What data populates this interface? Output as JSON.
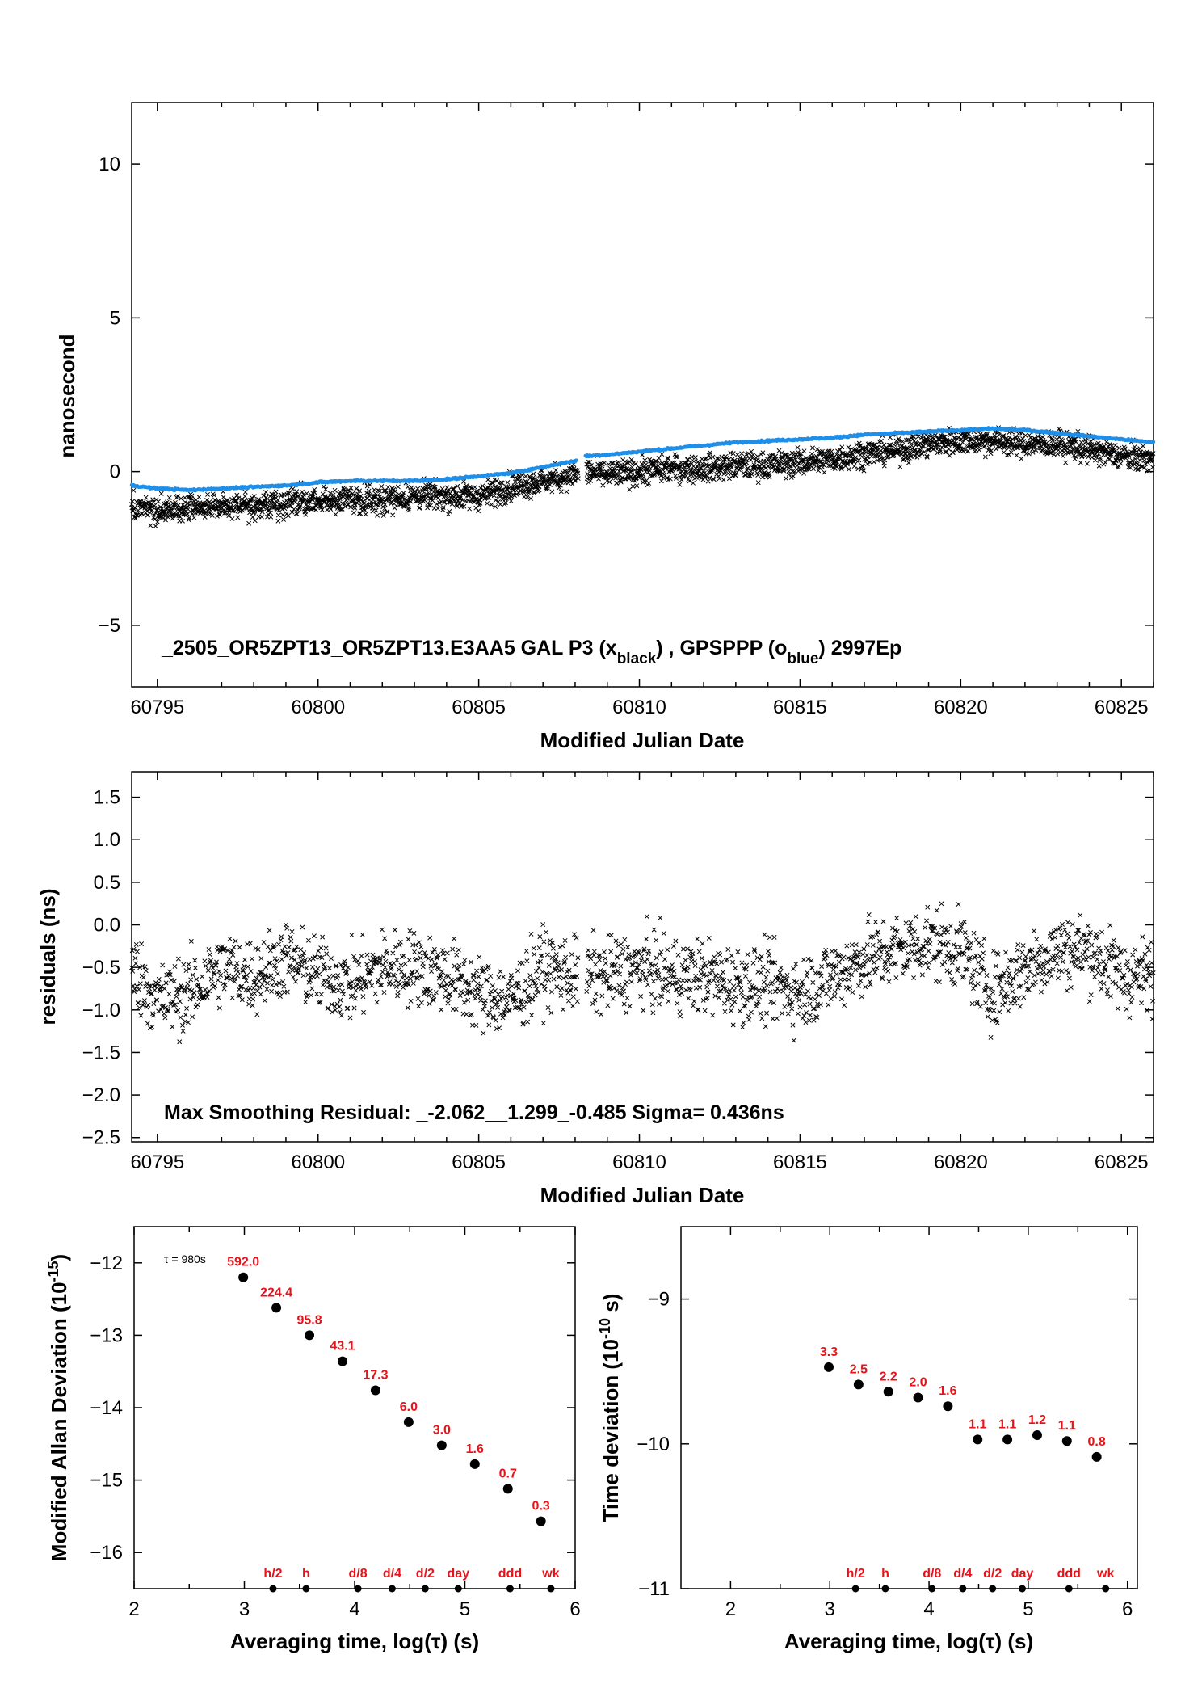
{
  "chart_data": [
    {
      "id": "phase",
      "type": "scatter",
      "ylabel": "nanosecond",
      "xlabel": "Modified Julian Date",
      "xlim": [
        60794.2,
        60826.0
      ],
      "ylim": [
        -7.0,
        12.0
      ],
      "xticks": [
        60795,
        60800,
        60805,
        60810,
        60815,
        60820,
        60825
      ],
      "yticks": [
        10,
        5,
        0,
        -5
      ],
      "ytick_labels": [
        "10",
        "5",
        "0",
        "−5"
      ],
      "annotation": {
        "prefix": "_2505_OR5ZPT13_OR5ZPT13.E3AA5     GAL P3 (x",
        "sub1": "black",
        "mid": ") ,  GPSPPP (o",
        "sub2": "blue",
        "suffix": ")  2997Ep"
      },
      "series": [
        {
          "marker": "x",
          "color": "#000000",
          "x": [
            60794.2,
            60795.0,
            60796.0,
            60797.0,
            60798.0,
            60799.0,
            60800.0,
            60801.0,
            60802.0,
            60803.0,
            60804.0,
            60805.0,
            60806.0,
            60807.0,
            60808.0,
            60808.3,
            60809.0,
            60810.0,
            60811.0,
            60812.0,
            60813.0,
            60814.0,
            60815.0,
            60816.0,
            60817.0,
            60818.0,
            60819.0,
            60820.0,
            60821.0,
            60822.0,
            60823.0,
            60824.0,
            60825.0,
            60826.0
          ],
          "y": [
            -1.2,
            -1.3,
            -1.2,
            -1.1,
            -1.1,
            -1.0,
            -1.0,
            -0.9,
            -0.9,
            -0.8,
            -0.8,
            -0.8,
            -0.5,
            -0.3,
            -0.1,
            0.0,
            -0.1,
            0.0,
            0.1,
            0.1,
            0.2,
            0.2,
            0.3,
            0.4,
            0.6,
            0.7,
            0.9,
            1.0,
            1.0,
            0.9,
            0.9,
            0.7,
            0.5,
            0.4
          ]
        },
        {
          "marker": "o",
          "color": "#1f8fe8",
          "x": [
            60794.2,
            60795.0,
            60796.0,
            60797.0,
            60798.0,
            60799.0,
            60800.0,
            60801.0,
            60802.0,
            60803.0,
            60804.0,
            60805.0,
            60806.0,
            60807.0,
            60808.0,
            60808.3,
            60809.0,
            60810.0,
            60811.0,
            60812.0,
            60813.0,
            60814.0,
            60815.0,
            60816.0,
            60817.0,
            60818.0,
            60819.0,
            60820.0,
            60821.0,
            60822.0,
            60823.0,
            60824.0,
            60825.0,
            60826.0
          ],
          "y": [
            -0.45,
            -0.55,
            -0.6,
            -0.55,
            -0.5,
            -0.45,
            -0.35,
            -0.3,
            -0.3,
            -0.3,
            -0.25,
            -0.15,
            -0.05,
            0.15,
            0.35,
            0.5,
            0.55,
            0.65,
            0.75,
            0.85,
            0.95,
            1.0,
            1.05,
            1.1,
            1.2,
            1.25,
            1.3,
            1.35,
            1.4,
            1.35,
            1.25,
            1.15,
            1.05,
            0.95
          ]
        }
      ]
    },
    {
      "id": "residuals",
      "type": "scatter",
      "ylabel": "residuals (ns)",
      "xlabel": "Modified Julian Date",
      "xlim": [
        60794.2,
        60826.0
      ],
      "ylim": [
        -2.55,
        1.8
      ],
      "xticks": [
        60795,
        60800,
        60805,
        60810,
        60815,
        60820,
        60825
      ],
      "yticks": [
        1.5,
        1.0,
        0.5,
        0.0,
        -0.5,
        -1.0,
        -1.5,
        -2.0,
        -2.5
      ],
      "ytick_labels": [
        "1.5",
        "1.0",
        "0.5",
        "0.0",
        "−0.5",
        "−1.0",
        "−1.5",
        "−2.0",
        "−2.5"
      ],
      "annotation": "Max Smoothing Residual: _-2.062__1.299_-0.485  Sigma= 0.436ns",
      "series": [
        {
          "marker": "x",
          "color": "#000000",
          "x": [
            60794.2,
            60795.0,
            60796.0,
            60797.0,
            60798.0,
            60799.0,
            60800.0,
            60801.0,
            60802.0,
            60803.0,
            60804.0,
            60805.0,
            60806.0,
            60807.0,
            60808.0,
            60809.0,
            60810.0,
            60811.0,
            60812.0,
            60813.0,
            60814.0,
            60815.0,
            60816.0,
            60817.0,
            60818.0,
            60819.0,
            60820.0,
            60821.0,
            60822.0,
            60823.0,
            60824.0,
            60825.0,
            60826.0
          ],
          "y": [
            -0.5,
            -0.9,
            -0.8,
            -0.5,
            -0.6,
            -0.4,
            -0.6,
            -0.7,
            -0.5,
            -0.5,
            -0.6,
            -0.8,
            -0.9,
            -0.5,
            -0.6,
            -0.6,
            -0.5,
            -0.6,
            -0.6,
            -0.7,
            -0.7,
            -0.8,
            -0.6,
            -0.4,
            -0.3,
            -0.2,
            -0.3,
            -0.8,
            -0.5,
            -0.3,
            -0.3,
            -0.6,
            -0.6
          ]
        }
      ]
    },
    {
      "id": "mdev",
      "type": "scatter",
      "ylabel_main": "Modified Allan Deviation (10",
      "ylabel_sup": "-15",
      "ylabel_end": ")",
      "xlabel": "Averaging time, log(τ) (s)",
      "xlim": [
        2,
        6
      ],
      "ylim": [
        -16.5,
        -11.5
      ],
      "xticks": [
        2,
        3,
        4,
        5,
        6
      ],
      "yticks": [
        -12,
        -13,
        -14,
        -15,
        -16
      ],
      "ytick_labels": [
        "−12",
        "−13",
        "−14",
        "−15",
        "−16"
      ],
      "tau_note": "τ = 980s",
      "points": {
        "x": [
          2.99,
          3.29,
          3.59,
          3.89,
          4.19,
          4.49,
          4.79,
          5.09,
          5.39,
          5.69
        ],
        "y": [
          -12.2,
          -12.62,
          -13.0,
          -13.36,
          -13.76,
          -14.2,
          -14.52,
          -14.78,
          -15.12,
          -15.57
        ],
        "labels": [
          "592.0",
          "224.4",
          "95.8",
          "43.1",
          "17.3",
          "6.0",
          "3.0",
          "1.6",
          "0.7",
          "0.3"
        ]
      },
      "markers": [
        {
          "label": "h/2",
          "x": 3.26
        },
        {
          "label": "h",
          "x": 3.56
        },
        {
          "label": "d/8",
          "x": 4.03
        },
        {
          "label": "d/4",
          "x": 4.34
        },
        {
          "label": "d/2",
          "x": 4.64
        },
        {
          "label": "day",
          "x": 4.94
        },
        {
          "label": "ddd",
          "x": 5.41
        },
        {
          "label": "wk",
          "x": 5.78
        }
      ]
    },
    {
      "id": "tdev",
      "type": "scatter",
      "ylabel_main": "Time deviation (10",
      "ylabel_sup": "-10",
      "ylabel_end": " s)",
      "xlabel": "Averaging time, log(τ) (s)",
      "xlim": [
        1.5,
        6.1
      ],
      "ylim": [
        -11.0,
        -8.5
      ],
      "xticks": [
        2,
        3,
        4,
        5,
        6
      ],
      "yticks": [
        -9,
        -10,
        -11
      ],
      "ytick_labels": [
        "−9",
        "−10",
        "−11"
      ],
      "points": {
        "x": [
          2.99,
          3.29,
          3.59,
          3.89,
          4.19,
          4.49,
          4.79,
          5.09,
          5.39,
          5.69
        ],
        "y": [
          -9.47,
          -9.59,
          -9.64,
          -9.68,
          -9.74,
          -9.97,
          -9.97,
          -9.94,
          -9.98,
          -10.09
        ],
        "labels": [
          "3.3",
          "2.5",
          "2.2",
          "2.0",
          "1.6",
          "1.1",
          "1.1",
          "1.2",
          "1.1",
          "0.8"
        ]
      },
      "markers": [
        {
          "label": "h/2",
          "x": 3.26
        },
        {
          "label": "h",
          "x": 3.56
        },
        {
          "label": "d/8",
          "x": 4.03
        },
        {
          "label": "d/4",
          "x": 4.34
        },
        {
          "label": "d/2",
          "x": 4.64
        },
        {
          "label": "day",
          "x": 4.94
        },
        {
          "label": "ddd",
          "x": 5.41
        },
        {
          "label": "wk",
          "x": 5.78
        }
      ]
    }
  ]
}
